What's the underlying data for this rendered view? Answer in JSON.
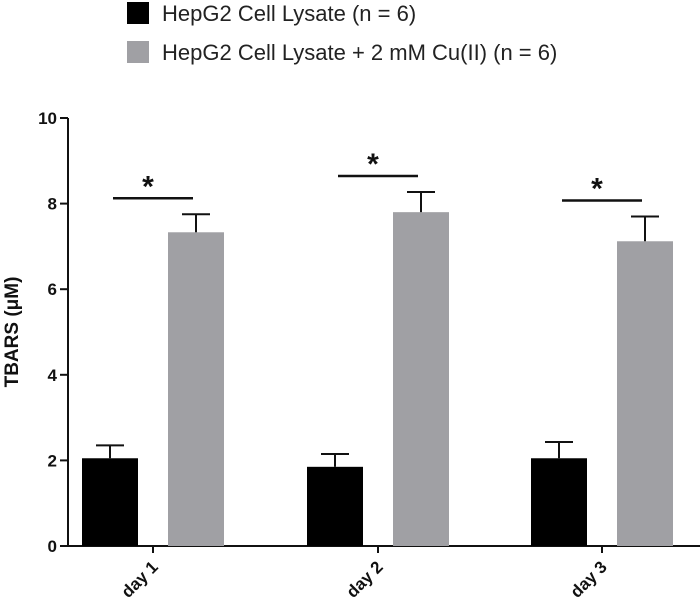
{
  "chart_data": {
    "type": "bar",
    "categories": [
      "day 1",
      "day 2",
      "day 3"
    ],
    "series": [
      {
        "name": "HepG2 Cell Lysate (n = 6)",
        "values": [
          2.05,
          1.85,
          2.05
        ],
        "errors": [
          0.3,
          0.3,
          0.38
        ],
        "color": "#000000"
      },
      {
        "name": "HepG2 Cell Lysate + 2 mM Cu(II) (n = 6)",
        "values": [
          7.33,
          7.8,
          7.12
        ],
        "errors": [
          0.42,
          0.47,
          0.58
        ],
        "color": "#a0a0a4"
      }
    ],
    "ylabel": "TBARS (μM)",
    "xlabel": "",
    "ylim": [
      0,
      10
    ],
    "yticks": [
      0,
      2,
      4,
      6,
      8,
      10
    ],
    "significance": [
      {
        "category": "day 1",
        "marker": "*"
      },
      {
        "category": "day 2",
        "marker": "*"
      },
      {
        "category": "day 3",
        "marker": "*"
      }
    ],
    "legend_position": "top",
    "grid": false
  }
}
